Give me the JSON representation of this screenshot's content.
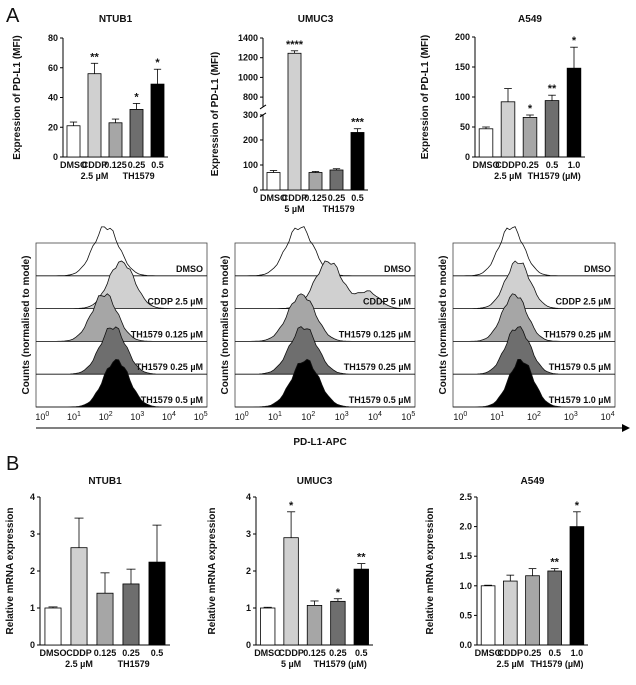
{
  "panel_labels": {
    "a": "A",
    "b": "B"
  },
  "colors": {
    "dmso": "#ffffff",
    "cddp": "#d0d0d0",
    "low": "#a6a6a6",
    "mid": "#6e6e6e",
    "high": "#000000"
  },
  "flow": {
    "xlabel": "PD-L1-APC",
    "ylabel": "Counts (normalised to mode)",
    "ticks": [
      "10",
      "10",
      "10",
      "10",
      "10",
      "10"
    ],
    "tick_exponents": [
      "0",
      "1",
      "2",
      "3",
      "4",
      "5"
    ],
    "panels": [
      {
        "labels": [
          "DMSO",
          "CDDP 2.5 µM",
          "TH1579 0.125 µM",
          "TH1579 0.25 µM",
          "TH1579 0.5 µM"
        ]
      },
      {
        "labels": [
          "DMSO",
          "CDDP 5 µM",
          "TH1579 0.125 µM",
          "TH1579 0.25 µM",
          "TH1579 0.5 µM"
        ]
      },
      {
        "labels": [
          "DMSO",
          "CDDP 2.5 µM",
          "TH1579 0.25 µM",
          "TH1579 0.5 µM",
          "TH1579 1.0 µM"
        ],
        "ticks_to": 4
      }
    ]
  },
  "chart_data": [
    {
      "type": "bar",
      "panel": "A",
      "title": "NTUB1",
      "ylabel": "Expression of PD-L1 (MFI)",
      "ylim": [
        0,
        80
      ],
      "yticks": [
        0,
        20,
        40,
        60,
        80
      ],
      "categories": [
        "DMSO",
        "CDDP",
        "0.125",
        "0.25",
        "0.5"
      ],
      "sub_labels": [
        "2.5 µM",
        "TH1579"
      ],
      "values": [
        21,
        56,
        23,
        32,
        49
      ],
      "errors": [
        2.5,
        7,
        2.5,
        4,
        10
      ],
      "significance": [
        "",
        "**",
        "",
        "*",
        "*"
      ]
    },
    {
      "type": "bar",
      "panel": "A",
      "title": "UMUC3",
      "ylabel": "Expression of PD-L1 (MFI)",
      "ylim": [
        0,
        1400
      ],
      "axis_break": [
        300,
        700
      ],
      "yticks": [
        0,
        100,
        200,
        300,
        800,
        1000,
        1200,
        1400
      ],
      "categories": [
        "DMSO",
        "CDDP",
        "0.125",
        "0.25",
        "0.5"
      ],
      "sub_labels": [
        "5 µM",
        "TH1579"
      ],
      "values": [
        70,
        1245,
        70,
        80,
        230
      ],
      "errors": [
        8,
        25,
        4,
        5,
        15
      ],
      "significance": [
        "",
        "****",
        "",
        "",
        "***"
      ]
    },
    {
      "type": "bar",
      "panel": "A",
      "title": "A549",
      "ylabel": "Expression of PD-L1 (MFI)",
      "ylim": [
        0,
        200
      ],
      "yticks": [
        0,
        50,
        100,
        150,
        200
      ],
      "categories": [
        "DMSO",
        "CDDP",
        "0.25",
        "0.5",
        "1.0"
      ],
      "sub_labels": [
        "2.5 µM",
        "TH1579 (µM)"
      ],
      "values": [
        47,
        92,
        66,
        94,
        148
      ],
      "errors": [
        3,
        22,
        4,
        9,
        35
      ],
      "significance": [
        "",
        "",
        "*",
        "**",
        "*"
      ]
    },
    {
      "type": "bar",
      "panel": "B",
      "title": "NTUB1",
      "ylabel": "Relative mRNA expression",
      "ylim": [
        0,
        4
      ],
      "yticks": [
        0,
        1,
        2,
        3,
        4
      ],
      "categories": [
        "DMSO",
        "CDDP",
        "0.125",
        "0.25",
        "0.5"
      ],
      "sub_labels": [
        "2.5 µM",
        "TH1579"
      ],
      "values": [
        1.0,
        2.63,
        1.4,
        1.65,
        2.24
      ],
      "errors": [
        0.03,
        0.8,
        0.55,
        0.4,
        1.0
      ],
      "significance": [
        "",
        "",
        "",
        "",
        ""
      ]
    },
    {
      "type": "bar",
      "panel": "B",
      "title": "UMUC3",
      "ylabel": "Relative mRNA expression",
      "ylim": [
        0,
        4
      ],
      "yticks": [
        0,
        1,
        2,
        3,
        4
      ],
      "categories": [
        "DMSO",
        "CDDP",
        "0.125",
        "0.25",
        "0.5"
      ],
      "sub_labels": [
        "5 µM",
        "TH1579 (µM)"
      ],
      "values": [
        1.0,
        2.9,
        1.07,
        1.18,
        2.05
      ],
      "errors": [
        0.02,
        0.7,
        0.12,
        0.07,
        0.15
      ],
      "significance": [
        "",
        "*",
        "",
        "*",
        "**"
      ]
    },
    {
      "type": "bar",
      "panel": "B",
      "title": "A549",
      "ylabel": "Relative mRNA expression",
      "ylim": [
        0,
        2.5
      ],
      "yticks": [
        0.0,
        0.5,
        1.0,
        1.5,
        2.0,
        2.5
      ],
      "categories": [
        "DMSO",
        "CDDP",
        "0.25",
        "0.5",
        "1.0"
      ],
      "sub_labels": [
        "2.5 µM",
        "TH1579 (µM)"
      ],
      "values": [
        1.0,
        1.08,
        1.17,
        1.25,
        2.0
      ],
      "errors": [
        0.01,
        0.1,
        0.12,
        0.04,
        0.25
      ],
      "significance": [
        "",
        "",
        "",
        "**",
        "*"
      ]
    }
  ]
}
